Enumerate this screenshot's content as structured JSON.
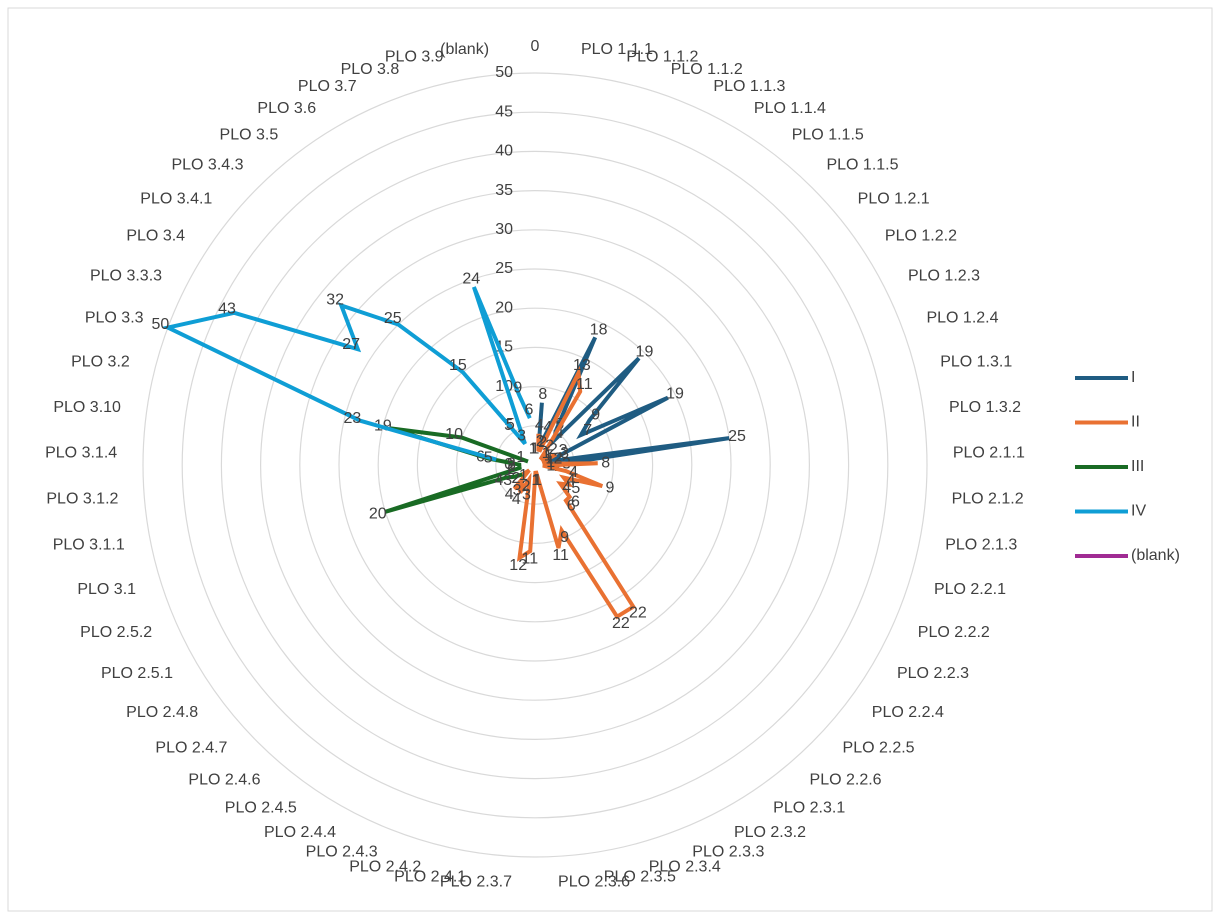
{
  "chart_data": {
    "type": "radar",
    "categories": [
      "0",
      "PLO 1.1.1",
      "PLO 1.1.2",
      "PLO 1.1.2",
      "PLO 1.1.3",
      "PLO 1.1.4",
      "PLO 1.1.5",
      "PLO 1.1.5",
      "PLO 1.2.1",
      "PLO 1.2.2",
      "PLO 1.2.3",
      "PLO 1.2.4",
      "PLO 1.3.1",
      "PLO 1.3.2",
      "PLO 2.1.1",
      "PLO 2.1.2",
      "PLO 2.1.3",
      "PLO 2.2.1",
      "PLO 2.2.2",
      "PLO 2.2.3",
      "PLO 2.2.4",
      "PLO 2.2.5",
      "PLO 2.2.6",
      "PLO 2.3.1",
      "PLO 2.3.2",
      "PLO 2.3.3",
      "PLO 2.3.4",
      "PLO 2.3.5",
      "PLO 2.3.6",
      "PLO 2.3.7",
      "PLO 2.4.1",
      "PLO 2.4.2",
      "PLO 2.4.3",
      "PLO 2.4.4",
      "PLO 2.4.5",
      "PLO 2.4.6",
      "PLO 2.4.7",
      "PLO 2.4.8",
      "PLO 2.5.1",
      "PLO 2.5.2",
      "PLO 3.1",
      "PLO 3.1.1",
      "PLO 3.1.2",
      "PLO 3.1.4",
      "PLO 3.10",
      "PLO 3.2",
      "PLO 3.3",
      "PLO 3.3.3",
      "PLO 3.4",
      "PLO 3.4.1",
      "PLO 3.4.3",
      "PLO 3.5",
      "PLO 3.6",
      "PLO 3.7",
      "PLO 3.8",
      "PLO 3.9",
      "(blank)"
    ],
    "ylim": [
      0,
      50
    ],
    "yticks": [
      0,
      5,
      10,
      15,
      20,
      25,
      30,
      35,
      40,
      45,
      50
    ],
    "grid": true,
    "legend": "right",
    "series": [
      {
        "name": "I",
        "color": "#1f5c82",
        "values": [
          null,
          8,
          2,
          4,
          18,
          5,
          4,
          19,
          9,
          7,
          19,
          3,
          2,
          25,
          3,
          2,
          null,
          null,
          null,
          null,
          null,
          null,
          null,
          null,
          null,
          null,
          null,
          null,
          null,
          null,
          null,
          null,
          null,
          null,
          null,
          null,
          null,
          null,
          null,
          null,
          null,
          null,
          null,
          null,
          null,
          null,
          null,
          null,
          null,
          null,
          null,
          null,
          null,
          null,
          null,
          null,
          null
        ]
      },
      {
        "name": "II",
        "color": "#e97132",
        "values": [
          null,
          4,
          2,
          2,
          13,
          11,
          2,
          1,
          2,
          1,
          3,
          1,
          2,
          1,
          8,
          1,
          4,
          9,
          4,
          5,
          4,
          6,
          6,
          22,
          22,
          9,
          11,
          1,
          1,
          11,
          12,
          3,
          2,
          4,
          3,
          4,
          1,
          2,
          null,
          null,
          null,
          null,
          null,
          null,
          null,
          null,
          null,
          null,
          null,
          null,
          null,
          null,
          null,
          null,
          null,
          null,
          null
        ]
      },
      {
        "name": "III",
        "color": "#196b24",
        "values": [
          1,
          null,
          null,
          null,
          null,
          null,
          null,
          null,
          null,
          null,
          null,
          null,
          null,
          null,
          null,
          null,
          null,
          null,
          null,
          null,
          null,
          null,
          null,
          null,
          null,
          null,
          null,
          null,
          null,
          null,
          null,
          null,
          null,
          null,
          null,
          null,
          null,
          2,
          3,
          4,
          20,
          2,
          2,
          2,
          6,
          19,
          10,
          1,
          null,
          null,
          null,
          null,
          null,
          null,
          null,
          null,
          1
        ]
      },
      {
        "name": "IV",
        "color": "#0f9ed5",
        "values": [
          null,
          null,
          null,
          null,
          null,
          null,
          null,
          null,
          null,
          null,
          null,
          null,
          null,
          null,
          null,
          null,
          null,
          null,
          null,
          null,
          null,
          null,
          null,
          null,
          null,
          null,
          null,
          null,
          null,
          null,
          null,
          null,
          null,
          null,
          null,
          null,
          null,
          null,
          null,
          null,
          null,
          null,
          null,
          null,
          5,
          23,
          50,
          43,
          27,
          32,
          25,
          15,
          5,
          3,
          24,
          9,
          6
        ]
      },
      {
        "name": "(blank)",
        "color": "#a02b93",
        "values": [
          null,
          null,
          null,
          null,
          null,
          null,
          null,
          null,
          null,
          null,
          null,
          null,
          null,
          null,
          null,
          null,
          null,
          null,
          null,
          null,
          null,
          null,
          null,
          null,
          null,
          null,
          null,
          null,
          null,
          null,
          null,
          null,
          null,
          null,
          null,
          null,
          null,
          null,
          null,
          null,
          null,
          null,
          null,
          null,
          null,
          null,
          null,
          null,
          null,
          null,
          null,
          null,
          null,
          null,
          null,
          null,
          null
        ]
      }
    ]
  }
}
